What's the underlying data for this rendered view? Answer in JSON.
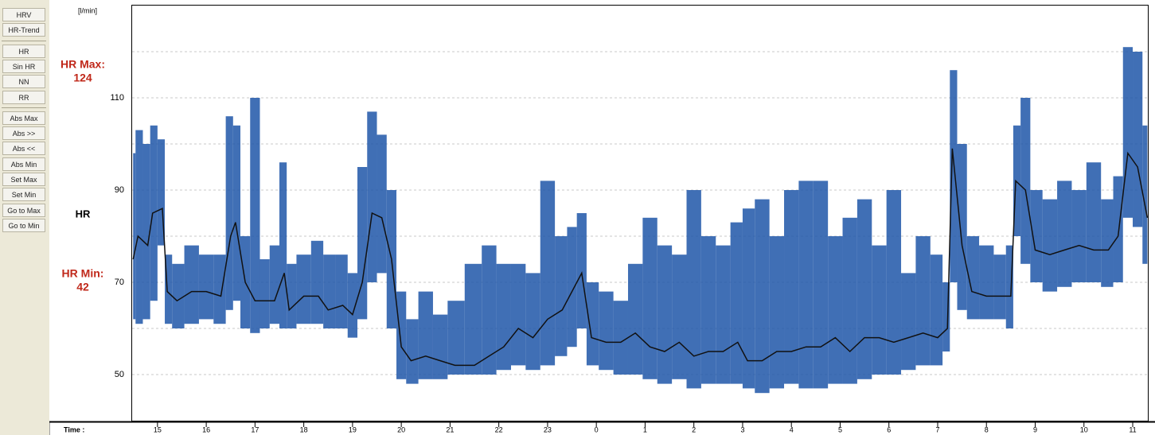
{
  "sidebar": {
    "groups": [
      [
        "HRV",
        "HR-Trend"
      ],
      [
        "HR",
        "Sin HR",
        "NN",
        "RR"
      ],
      [
        "Abs Max",
        "Abs >>",
        "Abs <<",
        "Abs Min",
        "Set Max",
        "Set Min",
        "Go to Max",
        "Go to Min"
      ]
    ]
  },
  "labels": {
    "unit": "[l/min]",
    "max_label": "HR Max:",
    "max_value": "124",
    "channel": "HR",
    "min_label": "HR Min:",
    "min_value": "42",
    "time_label": "Time :"
  },
  "chart_data": {
    "type": "line",
    "x": [
      14.5,
      14.6,
      14.8,
      14.9,
      15.1,
      15.2,
      15.4,
      15.7,
      16.0,
      16.3,
      16.5,
      16.6,
      16.8,
      17.0,
      17.2,
      17.4,
      17.6,
      17.7,
      18.0,
      18.3,
      18.5,
      18.8,
      19.0,
      19.2,
      19.4,
      19.6,
      19.8,
      20.0,
      20.2,
      20.5,
      20.8,
      21.1,
      21.5,
      21.8,
      22.1,
      22.4,
      22.7,
      23.0,
      23.3,
      23.5,
      23.7,
      23.9,
      24.2,
      24.5,
      24.8,
      25.1,
      25.4,
      25.7,
      26.0,
      26.3,
      26.6,
      26.9,
      27.1,
      27.4,
      27.7,
      28.0,
      28.3,
      28.6,
      28.9,
      29.2,
      29.5,
      29.8,
      30.1,
      30.4,
      30.7,
      31.0,
      31.2,
      31.3,
      31.5,
      31.7,
      32.0,
      32.3,
      32.5,
      32.6,
      32.8,
      33.0,
      33.3,
      33.6,
      33.9,
      34.2,
      34.5,
      34.7,
      34.9,
      35.1,
      35.3
    ],
    "band": {
      "color": "#1f56a8",
      "upper": [
        98,
        103,
        100,
        104,
        101,
        76,
        74,
        78,
        76,
        76,
        106,
        104,
        80,
        110,
        75,
        78,
        96,
        74,
        76,
        79,
        76,
        76,
        72,
        95,
        107,
        102,
        90,
        68,
        62,
        68,
        63,
        66,
        74,
        78,
        74,
        74,
        72,
        92,
        80,
        82,
        85,
        70,
        68,
        66,
        74,
        84,
        78,
        76,
        90,
        80,
        78,
        83,
        86,
        88,
        80,
        90,
        92,
        92,
        80,
        84,
        88,
        78,
        90,
        72,
        80,
        76,
        70,
        116,
        100,
        80,
        78,
        76,
        78,
        104,
        110,
        90,
        88,
        92,
        90,
        96,
        88,
        93,
        121,
        120,
        104
      ],
      "lower": [
        62,
        61,
        62,
        66,
        78,
        61,
        60,
        61,
        62,
        61,
        64,
        66,
        60,
        59,
        60,
        61,
        60,
        60,
        61,
        61,
        60,
        60,
        58,
        62,
        70,
        72,
        60,
        49,
        48,
        49,
        49,
        50,
        50,
        50,
        51,
        52,
        51,
        52,
        54,
        56,
        60,
        52,
        51,
        50,
        50,
        49,
        48,
        49,
        47,
        48,
        48,
        48,
        47,
        46,
        47,
        48,
        47,
        47,
        48,
        48,
        49,
        50,
        50,
        51,
        52,
        52,
        55,
        70,
        64,
        62,
        62,
        62,
        60,
        80,
        74,
        70,
        68,
        69,
        70,
        70,
        69,
        70,
        84,
        82,
        74
      ]
    },
    "series": [
      {
        "color": "#111111",
        "values": [
          75,
          80,
          78,
          85,
          86,
          68,
          66,
          68,
          68,
          67,
          80,
          83,
          70,
          66,
          66,
          66,
          72,
          64,
          67,
          67,
          64,
          65,
          63,
          70,
          85,
          84,
          75,
          56,
          53,
          54,
          53,
          52,
          52,
          54,
          56,
          60,
          58,
          62,
          64,
          68,
          72,
          58,
          57,
          57,
          59,
          56,
          55,
          57,
          54,
          55,
          55,
          57,
          53,
          53,
          55,
          55,
          56,
          56,
          58,
          55,
          58,
          58,
          57,
          58,
          59,
          58,
          60,
          99,
          78,
          68,
          67,
          67,
          67,
          92,
          90,
          77,
          76,
          77,
          78,
          77,
          77,
          80,
          98,
          95,
          84
        ]
      }
    ],
    "xlim": [
      14.48,
      35.31
    ],
    "xticks": [
      15,
      16,
      17,
      18,
      19,
      20,
      21,
      22,
      23,
      {
        "value": 24,
        "label": "0"
      },
      {
        "value": 25,
        "label": "1"
      },
      {
        "value": 26,
        "label": "2"
      },
      {
        "value": 27,
        "label": "3"
      },
      {
        "value": 28,
        "label": "4"
      },
      {
        "value": 29,
        "label": "5"
      },
      {
        "value": 30,
        "label": "6"
      },
      {
        "value": 31,
        "label": "7"
      },
      {
        "value": 32,
        "label": "8"
      },
      {
        "value": 33,
        "label": "9"
      },
      {
        "value": 34,
        "label": "10"
      },
      {
        "value": 35,
        "label": "11"
      }
    ],
    "ylim": [
      40,
      130
    ],
    "yticks": [
      50,
      70,
      90,
      110
    ],
    "minor_yticks": [
      60,
      80,
      100,
      120
    ],
    "grid": true
  }
}
